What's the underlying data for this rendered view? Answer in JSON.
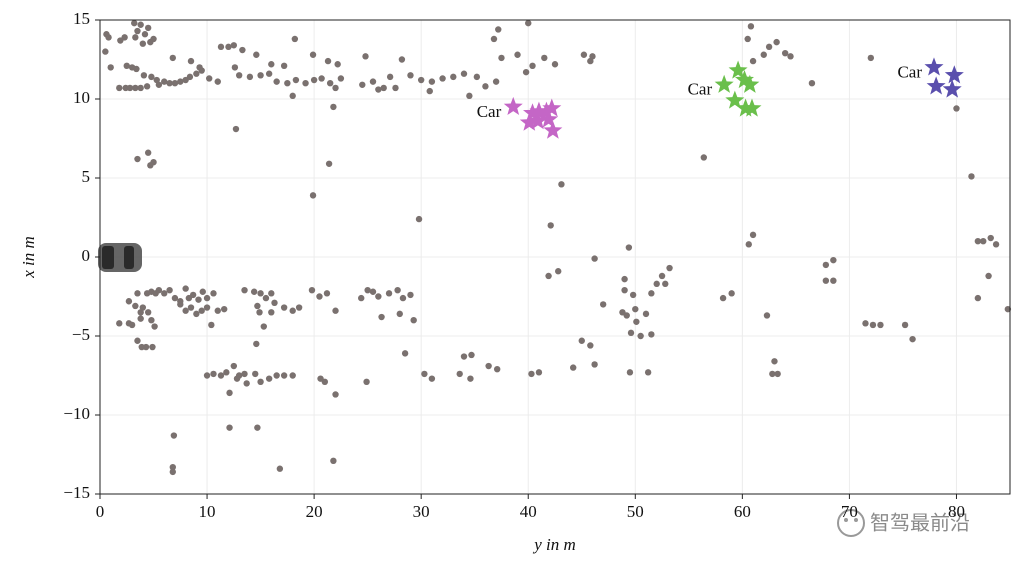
{
  "chart_data": {
    "type": "scatter",
    "xlabel": "y in m",
    "ylabel": "x in m",
    "xlim": [
      0,
      85
    ],
    "ylim": [
      -15,
      15
    ],
    "xticks": [
      0,
      10,
      20,
      30,
      40,
      50,
      60,
      70,
      80
    ],
    "yticks": [
      {
        "value": -15,
        "label": "−15"
      },
      {
        "value": -10,
        "label": "−10"
      },
      {
        "value": -5,
        "label": "−5"
      },
      0,
      5,
      10,
      15
    ],
    "grid": true,
    "watermark": "智驾最前沿",
    "series": [
      {
        "color": "#7a716f",
        "marker": "circle",
        "x": [
          0.5,
          0.8,
          1,
          0.6,
          1.9,
          2.3,
          3.2,
          3.5,
          3.8,
          4.2,
          4.5,
          5,
          3.3,
          4,
          4.7,
          2.5,
          3,
          3.4,
          4.1,
          4.8,
          5.3,
          1.8,
          2.4,
          2.8,
          3.3,
          3.8,
          4.4,
          5.5,
          6,
          6.5,
          7,
          7.5,
          8,
          8.4,
          9,
          9.5,
          10.2,
          11,
          6.8,
          8.5,
          9.3,
          11.3,
          12,
          12.5,
          13.3,
          14.6,
          16,
          17.2,
          18.2,
          19.9,
          12.6,
          13,
          14,
          15,
          15.8,
          16.5,
          17.5,
          18.3,
          19.2,
          20,
          20.7,
          21.5,
          22,
          22.5,
          18,
          21.3,
          22.2,
          24.8,
          25.5,
          26,
          26.5,
          27.1,
          28.2,
          27.6,
          29,
          30,
          31,
          32,
          33,
          34,
          35.2,
          36,
          37,
          37.5,
          36.8,
          37.2,
          39,
          39.8,
          40,
          40.4,
          41.5,
          42.5,
          24.5,
          30.8,
          34.5,
          21.8,
          12.7,
          45.2,
          45.8,
          46,
          60.8,
          60.5,
          61,
          62,
          62.5,
          63.2,
          64,
          64.5,
          66.5,
          80,
          72,
          3.5,
          4.5,
          5,
          4.7,
          19.9,
          21.4,
          29.8,
          42.1,
          43.1,
          56.4,
          81.4,
          61,
          60.6,
          41.9,
          42.8,
          46.2,
          49.4,
          49,
          52,
          52.8,
          52.5,
          53.2,
          51.5,
          49,
          49.8,
          47,
          48.8,
          50,
          49.2,
          50.1,
          51,
          51.5,
          50.5,
          49.6,
          45,
          45.8,
          44.2,
          46.2,
          49.5,
          51.2,
          58.2,
          59,
          62.3,
          62.8,
          63.3,
          63,
          67.8,
          68.5,
          67.8,
          68.5,
          71.5,
          72.2,
          72.9,
          75.2,
          75.9,
          82,
          82.5,
          83.2,
          83.7,
          83,
          82,
          84.8,
          1.8,
          2.7,
          2.7,
          3.3,
          3,
          3.5,
          3.8,
          4,
          4.4,
          4.8,
          5.2,
          5.5,
          6,
          6.5,
          7,
          7.5,
          8,
          8.3,
          8.7,
          9.2,
          9.6,
          10,
          10.6,
          7.5,
          8,
          8.5,
          9,
          9.5,
          10,
          10.4,
          11,
          11.6,
          3.8,
          4.5,
          4.8,
          5.1,
          3.5,
          3.9,
          4.3,
          4.9,
          13.5,
          14.4,
          15,
          15.5,
          16,
          16.3,
          14.7,
          14.9,
          15.3,
          16,
          17.2,
          18,
          18.6,
          19.8,
          20.5,
          21.2,
          22,
          25,
          25.5,
          26,
          27,
          27.8,
          28.3,
          29,
          24.4,
          26.3,
          28,
          29.3,
          14.6,
          28.5,
          30.3,
          31,
          33.6,
          34,
          34.7,
          34.6,
          36.3,
          37.1,
          40.3,
          41,
          10,
          10.6,
          11.3,
          11.8,
          12.5,
          13,
          13.5,
          12.8,
          13.7,
          14.5,
          15,
          15.8,
          16.5,
          17.2,
          18,
          20.6,
          21,
          22,
          24.9,
          12.1,
          12.1,
          14.7,
          6.9,
          6.8,
          6.8,
          16.8,
          21.8
        ],
        "values": [
          13,
          13.9,
          12,
          14.1,
          13.7,
          13.9,
          14.8,
          14.3,
          14.7,
          14.1,
          14.5,
          13.8,
          13.9,
          13.5,
          13.6,
          12.1,
          12,
          11.9,
          11.5,
          11.4,
          11.2,
          10.7,
          10.7,
          10.7,
          10.7,
          10.7,
          10.8,
          10.9,
          11.1,
          11,
          11,
          11.1,
          11.2,
          11.4,
          11.6,
          11.8,
          11.3,
          11.1,
          12.6,
          12.4,
          12,
          13.3,
          13.3,
          13.4,
          13.1,
          12.8,
          12.2,
          12.1,
          13.8,
          12.8,
          12,
          11.5,
          11.4,
          11.5,
          11.6,
          11.1,
          11,
          11.2,
          11,
          11.2,
          11.3,
          11,
          10.7,
          11.3,
          10.2,
          12.4,
          12.2,
          12.7,
          11.1,
          10.6,
          10.7,
          11.4,
          12.5,
          10.7,
          11.5,
          11.2,
          11.1,
          11.3,
          11.4,
          11.6,
          11.4,
          10.8,
          11.1,
          12.6,
          13.8,
          14.4,
          12.8,
          11.7,
          14.8,
          12.1,
          12.6,
          12.2,
          10.9,
          10.5,
          10.2,
          9.5,
          8.1,
          12.8,
          12.4,
          12.7,
          14.6,
          13.8,
          12.4,
          12.8,
          13.3,
          13.6,
          12.9,
          12.7,
          11,
          9.4,
          12.6,
          6.2,
          6.6,
          6,
          5.8,
          3.9,
          5.9,
          2.4,
          2,
          4.6,
          6.3,
          5.1,
          1.4,
          0.8,
          -1.2,
          -0.9,
          -0.1,
          0.6,
          -1.4,
          -1.7,
          -1.7,
          -1.2,
          -0.7,
          -2.3,
          -2.1,
          -2.4,
          -3,
          -3.5,
          -3.3,
          -3.7,
          -4.1,
          -3.6,
          -4.9,
          -5,
          -4.8,
          -5.3,
          -5.6,
          -7,
          -6.8,
          -7.3,
          -7.3,
          -2.6,
          -2.3,
          -3.7,
          -7.4,
          -7.4,
          -6.6,
          -0.5,
          -0.2,
          -1.5,
          -1.5,
          -4.2,
          -4.3,
          -4.3,
          -4.3,
          -5.2,
          1,
          1,
          1.2,
          0.8,
          -1.2,
          -2.6,
          -3.3,
          -4.2,
          -4.2,
          -2.8,
          -3.1,
          -4.3,
          -2.3,
          -3.5,
          -3.2,
          -2.3,
          -2.2,
          -2.3,
          -2.1,
          -2.3,
          -2.1,
          -2.6,
          -2.8,
          -2,
          -2.6,
          -2.4,
          -2.7,
          -2.2,
          -2.6,
          -2.3,
          -3,
          -3.4,
          -3.2,
          -3.6,
          -3.4,
          -3.2,
          -4.3,
          -3.4,
          -3.3,
          -3.9,
          -3.5,
          -4,
          -4.4,
          -5.3,
          -5.7,
          -5.7,
          -5.7,
          -2.1,
          -2.2,
          -2.3,
          -2.6,
          -2.3,
          -2.9,
          -3.1,
          -3.5,
          -4.4,
          -3.5,
          -3.2,
          -3.4,
          -3.2,
          -2.1,
          -2.5,
          -2.3,
          -3.4,
          -2.1,
          -2.2,
          -2.5,
          -2.3,
          -2.1,
          -2.6,
          -2.4,
          -2.6,
          -3.8,
          -3.6,
          -4,
          -5.5,
          -6.1,
          -7.4,
          -7.7,
          -7.4,
          -6.3,
          -6.2,
          -7.7,
          -6.9,
          -7.1,
          -7.4,
          -7.3,
          -7.5,
          -7.4,
          -7.5,
          -7.3,
          -6.9,
          -7.5,
          -7.4,
          -7.7,
          -8,
          -7.4,
          -7.9,
          -7.7,
          -7.5,
          -7.5,
          -7.5,
          -7.7,
          -7.9,
          -8.7,
          -7.9,
          -8.6,
          -10.8,
          -10.8,
          -11.3,
          -13.3,
          -13.6,
          -13.4,
          -12.9
        ]
      },
      {
        "color": "#c466c6",
        "marker": "star",
        "label": "Car",
        "x": [
          38.6,
          40.4,
          41.7,
          42.2,
          40.1,
          40.9,
          41.9,
          42.3,
          41
        ],
        "values": [
          9.5,
          9.1,
          9.2,
          9.4,
          8.5,
          8.6,
          8.7,
          8,
          9.2
        ]
      },
      {
        "color": "#6abf4b",
        "marker": "star",
        "label": "Car",
        "x": [
          58.3,
          59.6,
          60.2,
          60.7,
          59.3,
          60.3,
          60.9
        ],
        "values": [
          10.9,
          11.8,
          11.2,
          10.9,
          9.9,
          9.4,
          9.4
        ]
      },
      {
        "color": "#5a4fad",
        "marker": "star",
        "label": "Car",
        "x": [
          77.9,
          79.8,
          78.1,
          79.6
        ],
        "values": [
          12,
          11.5,
          10.8,
          10.6
        ]
      }
    ]
  }
}
